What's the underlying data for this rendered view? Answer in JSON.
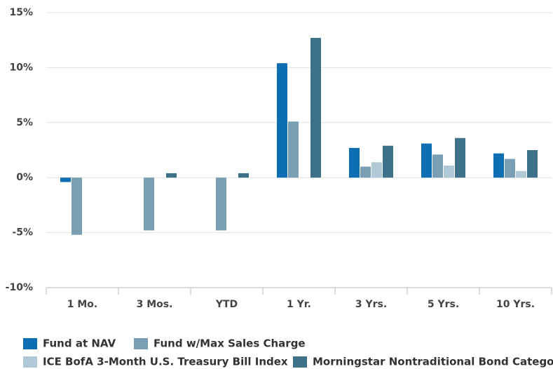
{
  "chart_data": {
    "type": "bar",
    "categories": [
      "1 Mo.",
      "3 Mos.",
      "YTD",
      "1 Yr.",
      "3 Yrs.",
      "5 Yrs.",
      "10 Yrs."
    ],
    "series": [
      {
        "name": "Fund at NAV",
        "color": "#0e6eb4",
        "values": [
          -0.4,
          0,
          0,
          10.4,
          2.7,
          3.1,
          2.2
        ]
      },
      {
        "name": "Fund w/Max Sales Charge",
        "color": "#7a9fb5",
        "values": [
          -5.2,
          -4.8,
          -4.8,
          5.1,
          1.0,
          2.1,
          1.7
        ]
      },
      {
        "name": "ICE BofA 3-Month U.S. Treasury Bill Index",
        "color": "#afc9d6",
        "values": [
          0,
          0,
          0,
          0,
          1.4,
          1.1,
          0.6
        ]
      },
      {
        "name": "Morningstar Nontraditional Bond Category",
        "color": "#3d7089",
        "values": [
          0,
          0.4,
          0.4,
          12.7,
          2.9,
          3.6,
          2.5
        ]
      }
    ],
    "ylim": [
      -10,
      15
    ],
    "yticks": [
      {
        "value": -10,
        "label": "-10%"
      },
      {
        "value": -5,
        "label": "-5%"
      },
      {
        "value": 0,
        "label": "0%"
      },
      {
        "value": 5,
        "label": "5%"
      },
      {
        "value": 10,
        "label": "10%"
      },
      {
        "value": 15,
        "label": "15%"
      }
    ],
    "grid": true,
    "legend": "bottom"
  }
}
